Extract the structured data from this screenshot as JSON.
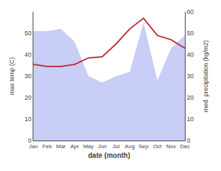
{
  "chart_data": {
    "type": "line",
    "categories": [
      "Jan",
      "Feb",
      "Mar",
      "Apr",
      "May",
      "Jun",
      "Jul",
      "Aug",
      "Sep",
      "Oct",
      "Nov",
      "Dec"
    ],
    "series": [
      {
        "type": "area",
        "axis": "y2",
        "color": "#c8cef5",
        "values": [
          51,
          51,
          52,
          46,
          30,
          27,
          30,
          32,
          55,
          28,
          43,
          49
        ]
      },
      {
        "type": "line",
        "axis": "y",
        "color": "#c03040",
        "values": [
          35.5,
          34.5,
          34.5,
          35.5,
          38.5,
          39.0,
          45.0,
          52.0,
          57.0,
          49.0,
          47.0,
          43.0
        ]
      }
    ],
    "xlabel": "date (month)",
    "ylabel": "max temp (C)",
    "y2label": "med. precipitation (kg/m2)",
    "ylim": [
      0,
      60
    ],
    "yticks": [
      0,
      10,
      20,
      30,
      40,
      50
    ],
    "y2lim": [
      0,
      60
    ],
    "y2ticks": [
      0,
      10,
      20,
      30,
      40,
      50,
      60
    ],
    "grid": false
  }
}
